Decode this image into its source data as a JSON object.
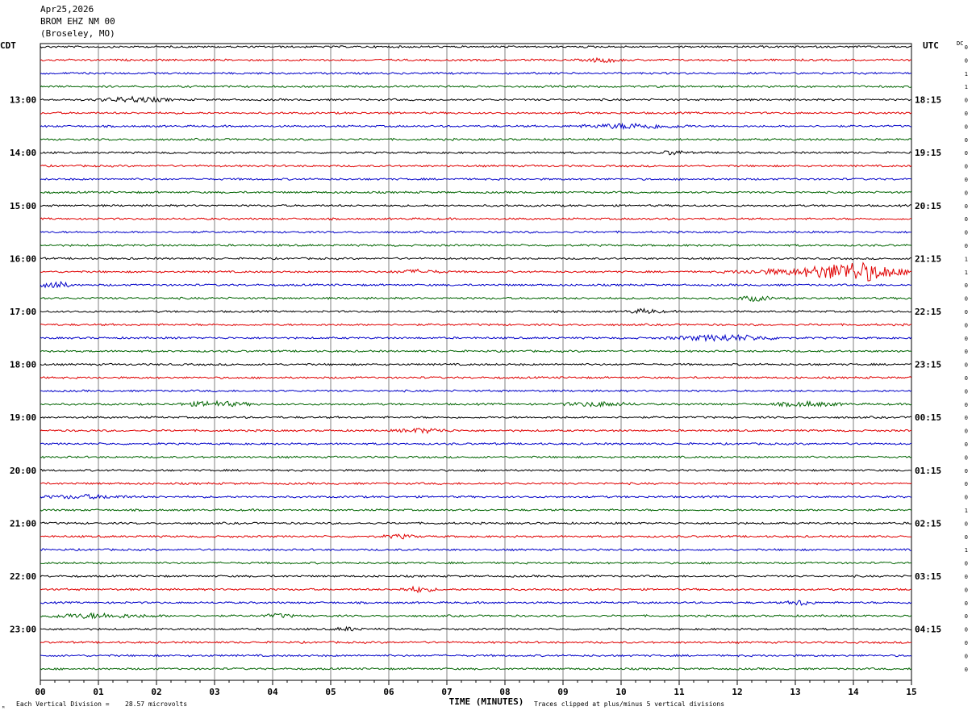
{
  "header": {
    "date": "Apr25,2026",
    "station": "BROM EHZ NM 00",
    "location": "(Broseley, MO)"
  },
  "footer": {
    "xlabel": "TIME (MINUTES)",
    "scale_note_prefix": "Each Vertical Division =",
    "scale_note_value": "28.57 microvolts",
    "clip_note": "Traces clipped at plus/minus 5 vertical divisions",
    "corner_mark": "ᴹ"
  },
  "chart_data": {
    "type": "line",
    "chart_kind": "helicorder seismogram",
    "left_axis_label": "CDT",
    "right_axis_label": "UTC",
    "dc_label": "DC",
    "x_ticks": [
      "00",
      "01",
      "02",
      "03",
      "04",
      "05",
      "06",
      "07",
      "08",
      "09",
      "10",
      "11",
      "12",
      "13",
      "14",
      "15"
    ],
    "x_range": [
      0,
      15
    ],
    "minutes_per_line": 15,
    "trace_count": 48,
    "trace_colors": [
      "#000000",
      "#e00000",
      "#0000c8",
      "#006400"
    ],
    "left_hour_labels": [
      "13:00",
      "14:00",
      "15:00",
      "16:00",
      "17:00",
      "18:00",
      "19:00",
      "20:00",
      "21:00",
      "22:00",
      "23:00"
    ],
    "right_hour_labels": [
      "18:15",
      "19:15",
      "20:15",
      "21:15",
      "22:15",
      "23:15",
      "00:15",
      "01:15",
      "02:15",
      "03:15",
      "04:15"
    ],
    "hour_label_first_trace": 4,
    "dc_values": [
      0,
      0,
      1,
      1,
      0,
      0,
      0,
      0,
      0,
      0,
      0,
      0,
      0,
      0,
      0,
      0,
      1,
      1,
      0,
      0,
      0,
      0,
      0,
      0,
      0,
      0,
      0,
      0,
      0,
      0,
      0,
      0,
      0,
      0,
      0,
      1,
      0,
      0,
      1,
      0,
      0,
      0,
      0,
      0,
      0,
      0,
      0,
      0
    ],
    "grid": true,
    "events": [
      {
        "trace": 1,
        "minute": 9.7,
        "amp": 2.5,
        "dur": 0.4
      },
      {
        "trace": 4,
        "minute": 1.6,
        "amp": 3,
        "dur": 0.8
      },
      {
        "trace": 6,
        "minute": 10.2,
        "amp": 3,
        "dur": 1.2
      },
      {
        "trace": 8,
        "minute": 10.9,
        "amp": 2.5,
        "dur": 0.3
      },
      {
        "trace": 17,
        "minute": 14.1,
        "amp": 11,
        "dur": 1.0
      },
      {
        "trace": 17,
        "minute": 13.2,
        "amp": 4,
        "dur": 1.6
      },
      {
        "trace": 17,
        "minute": 6.5,
        "amp": 2,
        "dur": 0.6
      },
      {
        "trace": 18,
        "minute": 0.2,
        "amp": 5,
        "dur": 0.4
      },
      {
        "trace": 19,
        "minute": 12.3,
        "amp": 3,
        "dur": 0.4
      },
      {
        "trace": 20,
        "minute": 10.4,
        "amp": 2.5,
        "dur": 0.4
      },
      {
        "trace": 22,
        "minute": 11.8,
        "amp": 3.5,
        "dur": 1.2
      },
      {
        "trace": 27,
        "minute": 3.0,
        "amp": 3,
        "dur": 0.8
      },
      {
        "trace": 27,
        "minute": 9.6,
        "amp": 2.5,
        "dur": 0.8
      },
      {
        "trace": 27,
        "minute": 13.2,
        "amp": 2.5,
        "dur": 0.8
      },
      {
        "trace": 29,
        "minute": 6.6,
        "amp": 2.5,
        "dur": 0.6
      },
      {
        "trace": 34,
        "minute": 0.8,
        "amp": 2,
        "dur": 1.0
      },
      {
        "trace": 37,
        "minute": 6.2,
        "amp": 2,
        "dur": 0.4
      },
      {
        "trace": 41,
        "minute": 6.5,
        "amp": 3,
        "dur": 0.4
      },
      {
        "trace": 42,
        "minute": 13.1,
        "amp": 3,
        "dur": 0.3
      },
      {
        "trace": 43,
        "minute": 0.9,
        "amp": 2.5,
        "dur": 1.4
      },
      {
        "trace": 43,
        "minute": 4.1,
        "amp": 2,
        "dur": 0.4
      },
      {
        "trace": 44,
        "minute": 5.3,
        "amp": 2,
        "dur": 0.3
      }
    ]
  }
}
